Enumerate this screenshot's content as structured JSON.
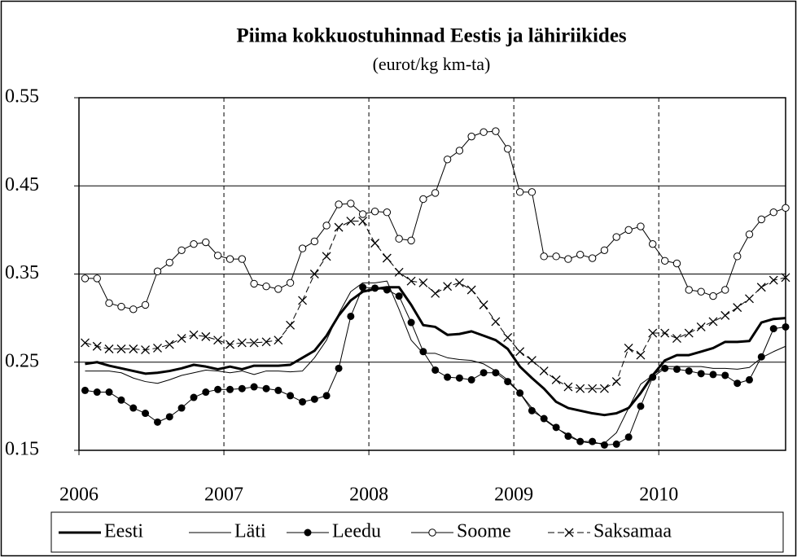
{
  "chart_data": {
    "type": "line",
    "title": "Piima kokkuostuhinnad Eestis ja lähiriikides",
    "subtitle": "(eurot/kg km-ta)",
    "x": [
      2006.042,
      2006.125,
      2006.208,
      2006.292,
      2006.375,
      2006.458,
      2006.542,
      2006.625,
      2006.708,
      2006.792,
      2006.875,
      2006.958,
      2007.042,
      2007.125,
      2007.208,
      2007.292,
      2007.375,
      2007.458,
      2007.542,
      2007.625,
      2007.708,
      2007.792,
      2007.875,
      2007.958,
      2008.042,
      2008.125,
      2008.208,
      2008.292,
      2008.375,
      2008.458,
      2008.542,
      2008.625,
      2008.708,
      2008.792,
      2008.875,
      2008.958,
      2009.042,
      2009.125,
      2009.208,
      2009.292,
      2009.375,
      2009.458,
      2009.542,
      2009.625,
      2009.708,
      2009.792,
      2009.875,
      2009.958,
      2010.042,
      2010.125,
      2010.208,
      2010.292,
      2010.375,
      2010.458,
      2010.542,
      2010.625,
      2010.708,
      2010.792,
      2010.875
    ],
    "xlim": [
      2006,
      2010.875
    ],
    "xticks": [
      2006,
      2007,
      2008,
      2009,
      2010
    ],
    "ylim": [
      0.15,
      0.55
    ],
    "yticks": [
      0.15,
      0.25,
      0.35,
      0.45,
      0.55
    ],
    "grid": true,
    "legend": "bottom",
    "series": [
      {
        "name": "Eesti",
        "color": "#000000",
        "line_width": 3,
        "marker": "none",
        "dashed": false,
        "values": [
          0.248,
          0.25,
          0.246,
          0.243,
          0.24,
          0.237,
          0.238,
          0.24,
          0.243,
          0.247,
          0.245,
          0.242,
          0.245,
          0.242,
          0.246,
          0.246,
          0.246,
          0.247,
          0.255,
          0.263,
          0.28,
          0.303,
          0.32,
          0.33,
          0.333,
          0.335,
          0.335,
          0.315,
          0.292,
          0.29,
          0.281,
          0.282,
          0.285,
          0.28,
          0.275,
          0.265,
          0.245,
          0.232,
          0.22,
          0.205,
          0.198,
          0.195,
          0.192,
          0.19,
          0.192,
          0.198,
          0.215,
          0.235,
          0.252,
          0.258,
          0.258,
          0.262,
          0.266,
          0.273,
          0.273,
          0.274,
          0.295,
          0.299,
          0.3
        ]
      },
      {
        "name": "Läti",
        "color": "#000000",
        "line_width": 1,
        "marker": "none",
        "dashed": false,
        "values": [
          0.24,
          0.24,
          0.24,
          0.238,
          0.232,
          0.228,
          0.226,
          0.23,
          0.235,
          0.238,
          0.241,
          0.24,
          0.238,
          0.24,
          0.236,
          0.24,
          0.24,
          0.239,
          0.24,
          0.255,
          0.275,
          0.305,
          0.33,
          0.34,
          0.34,
          0.342,
          0.31,
          0.275,
          0.26,
          0.26,
          0.255,
          0.253,
          0.252,
          0.248,
          0.24,
          0.23,
          0.215,
          0.198,
          0.185,
          0.175,
          0.168,
          0.16,
          0.158,
          0.158,
          0.17,
          0.198,
          0.225,
          0.235,
          0.245,
          0.245,
          0.245,
          0.245,
          0.243,
          0.243,
          0.242,
          0.244,
          0.255,
          0.262,
          0.268
        ]
      },
      {
        "name": "Leedu",
        "color": "#000000",
        "line_width": 1,
        "marker": "filled-circle",
        "dashed": false,
        "values": [
          0.218,
          0.216,
          0.216,
          0.207,
          0.198,
          0.192,
          0.182,
          0.188,
          0.198,
          0.21,
          0.216,
          0.219,
          0.219,
          0.22,
          0.222,
          0.22,
          0.218,
          0.212,
          0.205,
          0.208,
          0.212,
          0.243,
          0.302,
          0.335,
          0.334,
          0.332,
          0.325,
          0.295,
          0.262,
          0.241,
          0.233,
          0.232,
          0.23,
          0.238,
          0.238,
          0.228,
          0.215,
          0.195,
          0.186,
          0.176,
          0.166,
          0.16,
          0.16,
          0.156,
          0.157,
          0.165,
          0.2,
          0.233,
          0.243,
          0.242,
          0.24,
          0.237,
          0.236,
          0.235,
          0.226,
          0.23,
          0.256,
          0.288,
          0.29
        ]
      },
      {
        "name": "Soome",
        "color": "#000000",
        "line_width": 1,
        "marker": "open-circle",
        "dashed": false,
        "values": [
          0.345,
          0.345,
          0.317,
          0.313,
          0.31,
          0.315,
          0.353,
          0.363,
          0.377,
          0.384,
          0.386,
          0.371,
          0.367,
          0.367,
          0.339,
          0.336,
          0.333,
          0.34,
          0.379,
          0.387,
          0.405,
          0.429,
          0.43,
          0.418,
          0.421,
          0.42,
          0.39,
          0.388,
          0.435,
          0.442,
          0.48,
          0.49,
          0.506,
          0.511,
          0.512,
          0.492,
          0.443,
          0.443,
          0.37,
          0.37,
          0.367,
          0.372,
          0.368,
          0.377,
          0.392,
          0.4,
          0.404,
          0.384,
          0.365,
          0.362,
          0.332,
          0.33,
          0.325,
          0.332,
          0.37,
          0.395,
          0.412,
          0.42,
          0.425
        ]
      },
      {
        "name": "Saksamaa",
        "color": "#000000",
        "line_width": 1,
        "marker": "cross",
        "dashed": true,
        "values": [
          0.272,
          0.268,
          0.265,
          0.265,
          0.265,
          0.264,
          0.266,
          0.27,
          0.277,
          0.281,
          0.279,
          0.275,
          0.27,
          0.272,
          0.272,
          0.273,
          0.275,
          0.292,
          0.32,
          0.35,
          0.37,
          0.403,
          0.41,
          0.41,
          0.385,
          0.368,
          0.352,
          0.342,
          0.34,
          0.328,
          0.336,
          0.34,
          0.332,
          0.315,
          0.296,
          0.278,
          0.262,
          0.252,
          0.24,
          0.23,
          0.222,
          0.22,
          0.22,
          0.22,
          0.228,
          0.266,
          0.258,
          0.283,
          0.283,
          0.277,
          0.283,
          0.29,
          0.296,
          0.303,
          0.312,
          0.322,
          0.335,
          0.343,
          0.346
        ]
      }
    ]
  }
}
